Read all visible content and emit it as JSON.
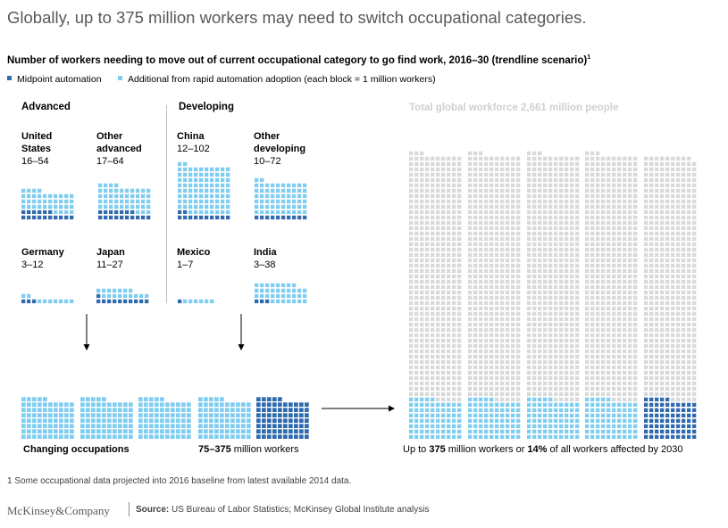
{
  "title": "Globally, up to 375 million workers may need to switch occupational categories.",
  "chart_data": {
    "type": "waffle",
    "subtitle": "Number of workers needing to move out of current occupational category to go find work, 2016–30 (trendline scenario)",
    "subtitle_footnote_marker": "1",
    "unit_note": "each block = 1 million workers",
    "legend": [
      {
        "key": "midpoint",
        "label": "Midpoint automation",
        "color": "#2e6aad"
      },
      {
        "key": "additional",
        "label": "Additional from rapid automation adoption (each block = 1 million workers)",
        "color": "#7fcdf0"
      }
    ],
    "groups": [
      {
        "label": "Advanced",
        "countries": [
          {
            "name": "United\nStates",
            "range_label": "16–54",
            "midpoint": 16,
            "rapid": 54
          },
          {
            "name": "Other\nadvanced",
            "range_label": "17–64",
            "midpoint": 17,
            "rapid": 64
          },
          {
            "name": "Germany",
            "range_label": "3–12",
            "midpoint": 3,
            "rapid": 12
          },
          {
            "name": "Japan",
            "range_label": "11–27",
            "midpoint": 11,
            "rapid": 27
          }
        ]
      },
      {
        "label": "Developing",
        "countries": [
          {
            "name": "China",
            "range_label": "12–102",
            "midpoint": 12,
            "rapid": 102
          },
          {
            "name": "Other\ndeveloping",
            "range_label": "10–72",
            "midpoint": 10,
            "rapid": 72
          },
          {
            "name": "Mexico",
            "range_label": "1–7",
            "midpoint": 1,
            "rapid": 7
          },
          {
            "name": "India",
            "range_label": "3–38",
            "midpoint": 3,
            "rapid": 38
          }
        ]
      }
    ],
    "changing_occupations": {
      "label": "Changing occupations",
      "range_label": "75–375",
      "unit_label": "million workers",
      "midpoint": 75,
      "rapid": 375
    },
    "global_workforce": {
      "label": "Total global workforce 2,661 million people",
      "total": 2661,
      "affected": 375,
      "share_percent": 14,
      "color": "#d9d9d9"
    },
    "global_caption": {
      "prefix": "Up to",
      "value": "375",
      "middle": "million workers or",
      "share": "14%",
      "suffix": "of all workers affected by 2030"
    }
  },
  "footnote": "1 Some occupational data projected into 2016 baseline from latest available 2014 data.",
  "brand": "McKinsey&Company",
  "source_label": "Source:",
  "source_text": "US Bureau of Labor Statistics; McKinsey Global Institute analysis"
}
